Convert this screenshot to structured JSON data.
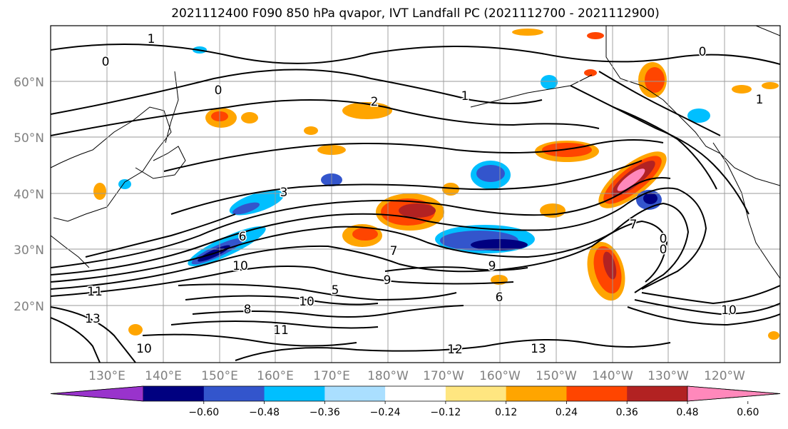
{
  "title": "2021112400 F090 850 hPa qvapor, IVT Landfall PC (2021112700 - 2021112900)",
  "lat_labels": [
    "60°N",
    "50°N",
    "40°N",
    "30°N",
    "20°N"
  ],
  "lon_labels": [
    "130°E",
    "140°E",
    "150°E",
    "160°E",
    "170°E",
    "180°W",
    "170°W",
    "160°W",
    "150°W",
    "140°W",
    "130°W",
    "120°W"
  ],
  "colorbar": {
    "colors": [
      "#9933cc",
      "#000080",
      "#3355cc",
      "#00bfff",
      "#aadfff",
      "#ffffff",
      "#ffe680",
      "#ffa500",
      "#ff4500",
      "#b22222",
      "#ff88bb"
    ],
    "tick_labels": [
      "−0.60",
      "−0.48",
      "−0.36",
      "−0.24",
      "−0.12",
      "0.12",
      "0.24",
      "0.36",
      "0.48",
      "0.60"
    ]
  },
  "contour_labels": [
    {
      "text": "1"
    },
    {
      "text": "0"
    },
    {
      "text": "0"
    },
    {
      "text": "2"
    },
    {
      "text": "1"
    },
    {
      "text": "0"
    },
    {
      "text": "1"
    },
    {
      "text": "3"
    },
    {
      "text": "6"
    },
    {
      "text": "10"
    },
    {
      "text": "11"
    },
    {
      "text": "13"
    },
    {
      "text": "7"
    },
    {
      "text": "9"
    },
    {
      "text": "9"
    },
    {
      "text": "10"
    },
    {
      "text": "12"
    },
    {
      "text": "13"
    },
    {
      "text": "10"
    },
    {
      "text": "7"
    },
    {
      "text": "0"
    },
    {
      "text": "0"
    },
    {
      "text": "10"
    },
    {
      "text": "5"
    },
    {
      "text": "8"
    },
    {
      "text": "11"
    },
    {
      "text": "6"
    }
  ]
}
